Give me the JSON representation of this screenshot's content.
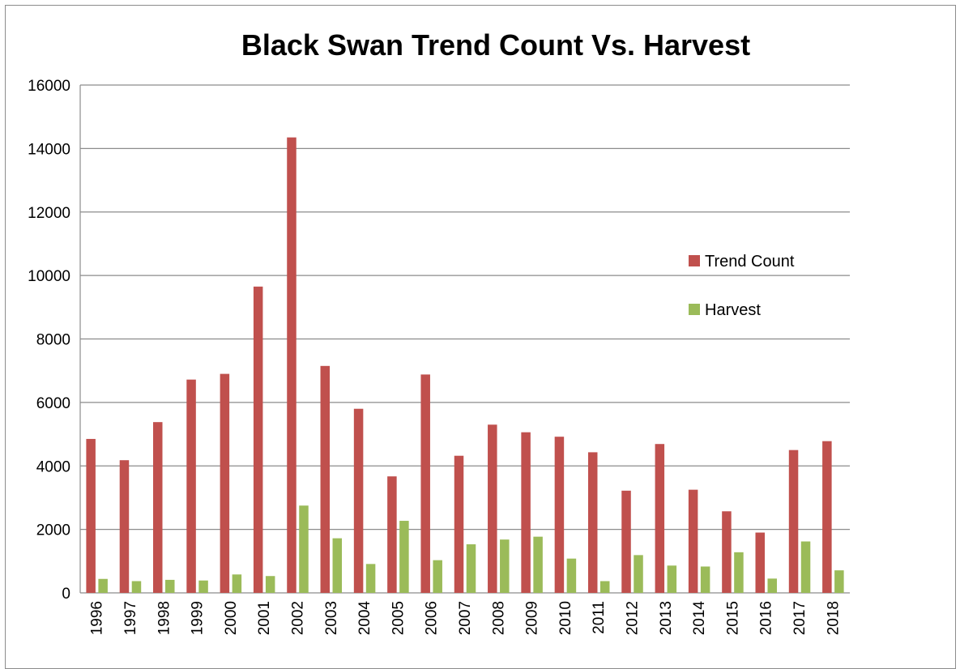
{
  "chart_data": {
    "type": "bar",
    "title": "Black Swan Trend Count Vs. Harvest",
    "xlabel": "",
    "ylabel": "",
    "ylim": [
      0,
      16000
    ],
    "yticks": [
      "0",
      "2000",
      "4000",
      "6000",
      "8000",
      "10000",
      "12000",
      "14000",
      "16000"
    ],
    "categories": [
      "1996",
      "1997",
      "1998",
      "1999",
      "2000",
      "2001",
      "2002",
      "2003",
      "2004",
      "2005",
      "2006",
      "2007",
      "2008",
      "2009",
      "2010",
      "2011",
      "2012",
      "2013",
      "2014",
      "2015",
      "2016",
      "2017",
      "2018"
    ],
    "series": [
      {
        "name": "Trend Count",
        "color": "#c0504d",
        "values": [
          4850,
          4180,
          5380,
          6720,
          6900,
          9650,
          14350,
          7150,
          5800,
          3670,
          6880,
          4320,
          5300,
          5060,
          4920,
          4430,
          3220,
          4690,
          3250,
          2570,
          1900,
          4500,
          4780
        ]
      },
      {
        "name": "Harvest",
        "color": "#9bbb59",
        "values": [
          440,
          370,
          410,
          390,
          580,
          530,
          2750,
          1720,
          910,
          2270,
          1030,
          1530,
          1680,
          1770,
          1080,
          370,
          1190,
          860,
          830,
          1280,
          450,
          1620,
          710
        ]
      }
    ],
    "grid": true,
    "legend_position": "right"
  }
}
